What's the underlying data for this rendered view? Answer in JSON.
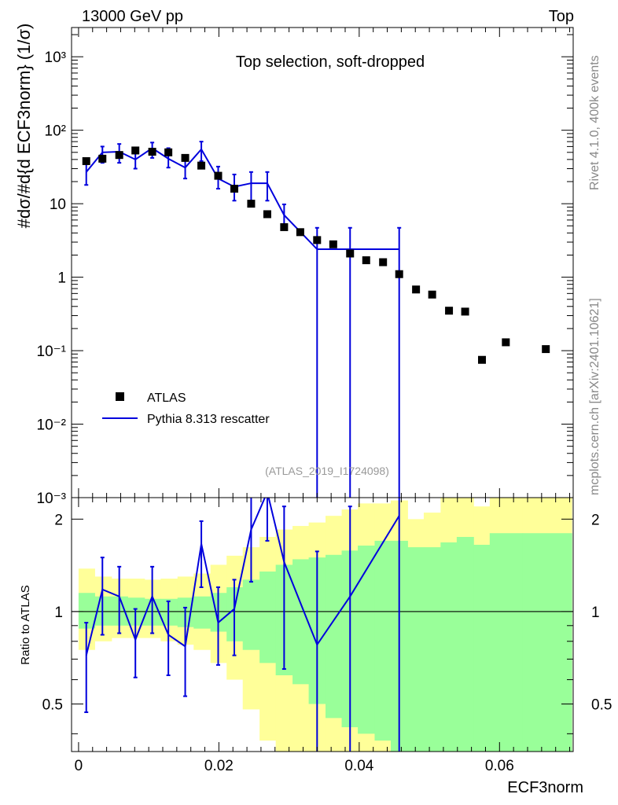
{
  "header": {
    "left": "13000 GeV pp",
    "right": "Top"
  },
  "side_text": {
    "upper": "Rivet 4.1.0,  400k events",
    "lower": "mcplots.cern.ch [arXiv:2401.10621]"
  },
  "colors": {
    "mc": "#0000dd",
    "data": "#000000",
    "band_inner": "#99ff99",
    "band_outer": "#ffff99",
    "watermark": "#999999"
  },
  "chart_data": [
    {
      "type": "scatter",
      "title": "Top selection, soft-dropped",
      "ylabel": "#dσ/#d{d ECF3norm}  (1/σ)",
      "yscale": "log",
      "ylim": [
        0.001,
        2500
      ],
      "xlim": [
        -0.001,
        0.0705
      ],
      "watermark": "(ATLAS_2019_I1724098)",
      "y_ticks": [
        {
          "value": 0.001,
          "label": "10⁻³"
        },
        {
          "value": 0.01,
          "label": "10⁻²"
        },
        {
          "value": 0.1,
          "label": "10⁻¹"
        },
        {
          "value": 1,
          "label": "1"
        },
        {
          "value": 10,
          "label": "10"
        },
        {
          "value": 100,
          "label": "10²"
        },
        {
          "value": 1000,
          "label": "10³"
        }
      ],
      "legend": {
        "position": "bottom-left",
        "entries": [
          "ATLAS",
          "Pythia 8.313 rescatter"
        ]
      },
      "series": [
        {
          "name": "ATLAS",
          "kind": "markers",
          "x": [
            0.0011,
            0.0034,
            0.0058,
            0.0081,
            0.0105,
            0.0128,
            0.0152,
            0.0175,
            0.0199,
            0.0222,
            0.0246,
            0.0269,
            0.0293,
            0.0316,
            0.034,
            0.0363,
            0.0387,
            0.041,
            0.0434,
            0.0457,
            0.0481,
            0.0504,
            0.0528,
            0.0551,
            0.0575,
            0.0609,
            0.0666
          ],
          "y": [
            38,
            41,
            46,
            53,
            51,
            50,
            42,
            33,
            24,
            16,
            10,
            7.2,
            4.8,
            4.1,
            3.2,
            2.8,
            2.1,
            1.7,
            1.6,
            1.1,
            0.68,
            0.58,
            0.35,
            0.34,
            0.075,
            0.13,
            0.105
          ]
        },
        {
          "name": "Pythia 8.313 rescatter",
          "kind": "line",
          "x": [
            0.0011,
            0.0034,
            0.0058,
            0.0081,
            0.0105,
            0.0128,
            0.0152,
            0.0175,
            0.0199,
            0.0222,
            0.0246,
            0.0269,
            0.0293,
            0.034,
            0.0387,
            0.0457
          ],
          "y": [
            27,
            50,
            51,
            40,
            57,
            41,
            31,
            55,
            22,
            17,
            19,
            19,
            7,
            2.4,
            2.4,
            2.4
          ],
          "err_low": [
            18,
            36,
            36,
            30,
            42,
            31,
            22,
            38,
            16,
            11,
            11,
            11,
            4.6,
            0.0008,
            0.0008,
            0.0008
          ],
          "err_high": [
            37,
            60,
            65,
            54,
            68,
            57,
            45,
            70,
            32,
            25,
            27,
            27,
            9.8,
            4.7,
            4.7,
            4.7
          ]
        }
      ]
    },
    {
      "type": "line",
      "ylabel": "Ratio to ATLAS",
      "xlabel": "ECF3norm",
      "yscale": "log",
      "ylim": [
        0.35,
        2.35
      ],
      "xlim": [
        -0.001,
        0.0705
      ],
      "x_ticks": [
        {
          "value": 0,
          "label": "0"
        },
        {
          "value": 0.02,
          "label": "0.02"
        },
        {
          "value": 0.04,
          "label": "0.04"
        },
        {
          "value": 0.06,
          "label": "0.06"
        }
      ],
      "y_ticks": [
        {
          "value": 0.5,
          "label": "0.5"
        },
        {
          "value": 1,
          "label": "1"
        },
        {
          "value": 2,
          "label": "2"
        }
      ],
      "bands": {
        "bins": [
          0.0,
          0.0023,
          0.0047,
          0.007,
          0.0094,
          0.0117,
          0.0141,
          0.0164,
          0.0188,
          0.0211,
          0.0234,
          0.0258,
          0.0281,
          0.0305,
          0.0328,
          0.0352,
          0.0375,
          0.0398,
          0.0422,
          0.0445,
          0.0469,
          0.0492,
          0.0516,
          0.0539,
          0.0563,
          0.0586,
          0.0633,
          0.0703
        ],
        "inner_low": [
          0.88,
          0.9,
          0.9,
          0.9,
          0.9,
          0.9,
          0.89,
          0.88,
          0.86,
          0.8,
          0.75,
          0.68,
          0.62,
          0.58,
          0.5,
          0.45,
          0.42,
          0.4,
          0.38,
          0.35,
          0.35,
          0.35,
          0.35,
          0.35,
          0.35,
          0.35,
          0.35
        ],
        "inner_high": [
          1.15,
          1.12,
          1.12,
          1.11,
          1.1,
          1.1,
          1.11,
          1.12,
          1.15,
          1.2,
          1.27,
          1.35,
          1.42,
          1.48,
          1.5,
          1.53,
          1.58,
          1.64,
          1.7,
          1.7,
          1.62,
          1.62,
          1.68,
          1.75,
          1.65,
          1.8,
          1.8
        ],
        "outer_low": [
          0.75,
          0.8,
          0.82,
          0.82,
          0.82,
          0.8,
          0.78,
          0.75,
          0.68,
          0.6,
          0.48,
          0.38,
          0.35,
          0.35,
          0.35,
          0.35,
          0.35,
          0.35,
          0.35,
          0.35,
          0.35,
          0.35,
          0.35,
          0.35,
          0.35,
          0.35,
          0.35
        ],
        "outer_high": [
          1.38,
          1.3,
          1.28,
          1.28,
          1.27,
          1.28,
          1.3,
          1.33,
          1.42,
          1.52,
          1.62,
          1.75,
          1.85,
          1.9,
          1.95,
          2.05,
          2.15,
          2.25,
          2.25,
          2.3,
          2.0,
          2.1,
          2.35,
          2.35,
          2.2,
          2.35,
          2.35
        ]
      },
      "series": [
        {
          "name": "Pythia 8.313 rescatter / ATLAS",
          "x": [
            0.0011,
            0.0034,
            0.0058,
            0.0081,
            0.0105,
            0.0128,
            0.0152,
            0.0175,
            0.0199,
            0.0222,
            0.0246,
            0.0269,
            0.0293,
            0.034,
            0.0387,
            0.0457
          ],
          "y": [
            0.72,
            1.18,
            1.12,
            0.81,
            1.12,
            0.84,
            0.77,
            1.66,
            0.92,
            1.02,
            1.85,
            2.45,
            1.45,
            0.78,
            1.12,
            2.05
          ],
          "err_low": [
            0.47,
            0.84,
            0.85,
            0.61,
            0.85,
            0.62,
            0.53,
            1.2,
            0.67,
            0.72,
            1.25,
            1.7,
            0.65,
            0.2,
            0.2,
            0.2
          ],
          "err_high": [
            0.92,
            1.5,
            1.4,
            1.02,
            1.4,
            1.08,
            1.03,
            1.97,
            1.2,
            1.27,
            2.45,
            2.45,
            2.2,
            1.57,
            2.2,
            2.45
          ]
        }
      ]
    }
  ]
}
